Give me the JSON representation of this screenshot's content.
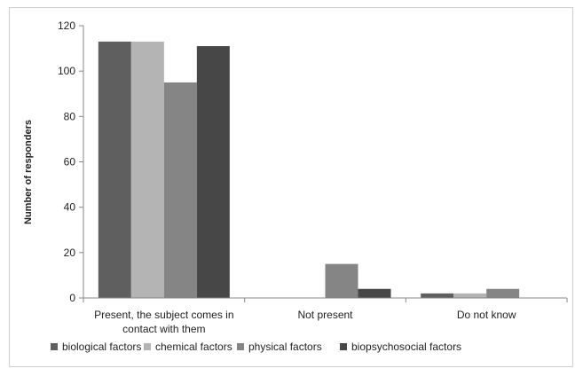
{
  "chart_data": {
    "type": "bar",
    "title": "",
    "xlabel": "",
    "ylabel": "Number of responders",
    "ylim": [
      0,
      120
    ],
    "yticks": [
      0,
      20,
      40,
      60,
      80,
      100,
      120
    ],
    "grid": false,
    "legend_position": "bottom",
    "categories": [
      [
        "Present, the subject comes in",
        "contact with them"
      ],
      [
        "Not present"
      ],
      [
        "Do  not know"
      ]
    ],
    "series": [
      {
        "name": "biological factors",
        "color": "#5f5f5f",
        "values": [
          113,
          0,
          2
        ]
      },
      {
        "name": "chemical factors",
        "color": "#b4b4b4",
        "values": [
          113,
          0,
          2
        ]
      },
      {
        "name": "physical factors",
        "color": "#858585",
        "values": [
          95,
          15,
          4
        ]
      },
      {
        "name": "biopsychosocial factors",
        "color": "#474747",
        "values": [
          111,
          4,
          0
        ]
      }
    ]
  }
}
